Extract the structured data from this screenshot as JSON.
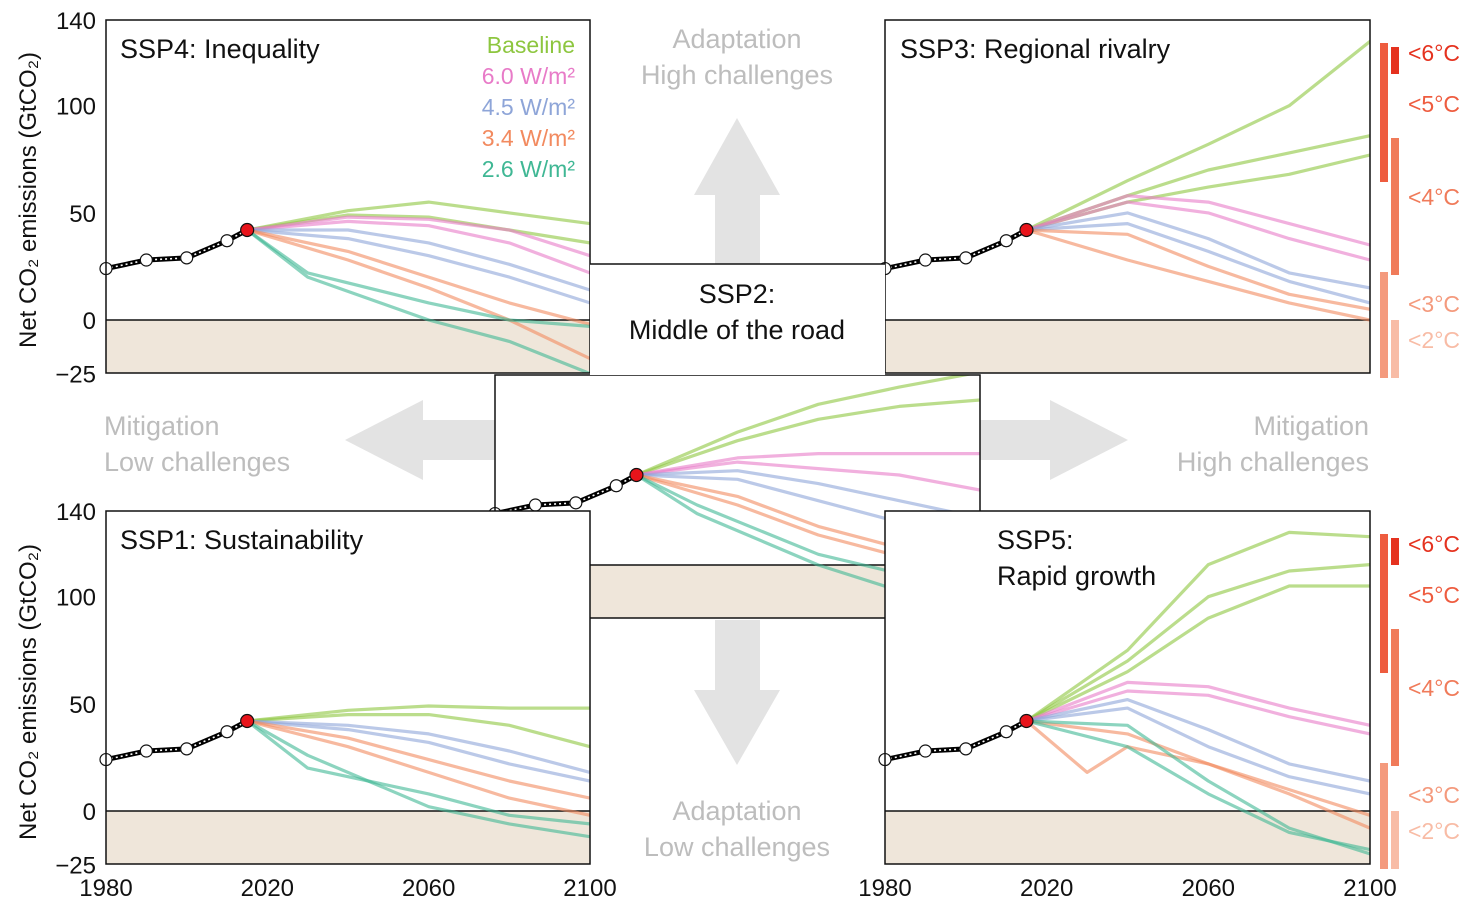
{
  "colors": {
    "baseline": "#8dc63f",
    "w60": "#e87bc8",
    "w45": "#8ea5d8",
    "w34": "#f28a5f",
    "w26": "#3fb794",
    "negative_fill": "#efe6da",
    "arrow": "#e3e3e3",
    "direction_text": "#bdbdbd",
    "history": "#000000",
    "current_point": "#e8141b",
    "temp_6": "#e5321f",
    "temp_5": "#ee5c3f",
    "temp_4": "#f07b5a",
    "temp_3": "#f49a7d",
    "temp_2": "#f8bca6"
  },
  "legend": [
    {
      "label": "Baseline",
      "color_key": "baseline"
    },
    {
      "label": "6.0 W/m²",
      "color_key": "w60"
    },
    {
      "label": "4.5 W/m²",
      "color_key": "w45"
    },
    {
      "label": "3.4 W/m²",
      "color_key": "w34"
    },
    {
      "label": "2.6 W/m²",
      "color_key": "w26"
    }
  ],
  "directions": {
    "up_line1": "Adaptation",
    "up_line2": "High challenges",
    "down_line1": "Adaptation",
    "down_line2": "Low challenges",
    "left_line1": "Mitigation",
    "left_line2": "Low challenges",
    "right_line1": "Mitigation",
    "right_line2": "High challenges"
  },
  "axes": {
    "ylabel": "Net CO₂ emissions (GtCO₂)",
    "yticks": [
      140,
      100,
      50,
      0,
      -25
    ],
    "ytick_labels": [
      "140",
      "100",
      "50",
      "0",
      "−25"
    ],
    "xticks": [
      1980,
      2020,
      2060,
      2100
    ],
    "xtick_labels": [
      "1980",
      "2020",
      "2060",
      "2100"
    ]
  },
  "temperature_scale": {
    "labels": [
      "<6°C",
      "<5°C",
      "<4°C",
      "<3°C",
      "<2°C"
    ],
    "color_keys": [
      "temp_6",
      "temp_5",
      "temp_4",
      "temp_3",
      "temp_2"
    ]
  },
  "chart_data": [
    {
      "type": "line",
      "title": "SSP4: Inequality",
      "xlim": [
        1980,
        2100
      ],
      "ylim": [
        -25,
        140
      ],
      "history": {
        "x": [
          1980,
          1990,
          2000,
          2010,
          2015
        ],
        "y": [
          24,
          28,
          29,
          37,
          42
        ]
      },
      "series": [
        {
          "name": "Baseline",
          "x": [
            2015,
            2040,
            2060,
            2080,
            2100
          ],
          "values": [
            42,
            51,
            55,
            50,
            45
          ]
        },
        {
          "name": "Baseline",
          "x": [
            2015,
            2040,
            2060,
            2080,
            2100
          ],
          "values": [
            42,
            49,
            48,
            42,
            36
          ]
        },
        {
          "name": "6.0 W/m²",
          "x": [
            2015,
            2040,
            2060,
            2080,
            2100
          ],
          "values": [
            42,
            48,
            47,
            42,
            30
          ]
        },
        {
          "name": "6.0 W/m²",
          "x": [
            2015,
            2040,
            2060,
            2080,
            2100
          ],
          "values": [
            42,
            46,
            44,
            36,
            22
          ]
        },
        {
          "name": "4.5 W/m²",
          "x": [
            2015,
            2040,
            2060,
            2080,
            2100
          ],
          "values": [
            42,
            42,
            36,
            26,
            14
          ]
        },
        {
          "name": "4.5 W/m²",
          "x": [
            2015,
            2040,
            2060,
            2080,
            2100
          ],
          "values": [
            42,
            38,
            30,
            20,
            8
          ]
        },
        {
          "name": "3.4 W/m²",
          "x": [
            2015,
            2040,
            2060,
            2080,
            2100
          ],
          "values": [
            42,
            32,
            20,
            8,
            -2
          ]
        },
        {
          "name": "3.4 W/m²",
          "x": [
            2015,
            2040,
            2060,
            2080,
            2100
          ],
          "values": [
            42,
            28,
            15,
            0,
            -18
          ]
        },
        {
          "name": "2.6 W/m²",
          "x": [
            2015,
            2030,
            2060,
            2080,
            2100
          ],
          "values": [
            42,
            22,
            8,
            0,
            -3
          ]
        },
        {
          "name": "2.6 W/m²",
          "x": [
            2015,
            2030,
            2060,
            2080,
            2100
          ],
          "values": [
            42,
            20,
            0,
            -10,
            -25
          ]
        }
      ]
    },
    {
      "type": "line",
      "title": "SSP3: Regional rivalry",
      "xlim": [
        1980,
        2100
      ],
      "ylim": [
        -25,
        140
      ],
      "history": {
        "x": [
          1980,
          1990,
          2000,
          2010,
          2015
        ],
        "y": [
          24,
          28,
          29,
          37,
          42
        ]
      },
      "series": [
        {
          "name": "Baseline",
          "x": [
            2015,
            2040,
            2060,
            2080,
            2100
          ],
          "values": [
            42,
            65,
            82,
            100,
            130
          ]
        },
        {
          "name": "Baseline",
          "x": [
            2015,
            2040,
            2060,
            2080,
            2100
          ],
          "values": [
            42,
            58,
            70,
            78,
            86
          ]
        },
        {
          "name": "Baseline",
          "x": [
            2015,
            2040,
            2060,
            2080,
            2100
          ],
          "values": [
            42,
            55,
            62,
            68,
            77
          ]
        },
        {
          "name": "6.0 W/m²",
          "x": [
            2015,
            2040,
            2060,
            2080,
            2100
          ],
          "values": [
            42,
            58,
            55,
            45,
            35
          ]
        },
        {
          "name": "6.0 W/m²",
          "x": [
            2015,
            2040,
            2060,
            2080,
            2100
          ],
          "values": [
            42,
            55,
            50,
            38,
            28
          ]
        },
        {
          "name": "4.5 W/m²",
          "x": [
            2015,
            2040,
            2060,
            2080,
            2100
          ],
          "values": [
            42,
            50,
            38,
            22,
            15
          ]
        },
        {
          "name": "4.5 W/m²",
          "x": [
            2015,
            2040,
            2060,
            2080,
            2100
          ],
          "values": [
            42,
            45,
            32,
            18,
            8
          ]
        },
        {
          "name": "3.4 W/m²",
          "x": [
            2015,
            2040,
            2060,
            2080,
            2100
          ],
          "values": [
            42,
            40,
            25,
            12,
            5
          ]
        },
        {
          "name": "3.4 W/m²",
          "x": [
            2015,
            2040,
            2060,
            2080,
            2100
          ],
          "values": [
            42,
            28,
            18,
            8,
            0
          ]
        }
      ]
    },
    {
      "type": "line",
      "title": "SSP2: Middle of the road",
      "xlim": [
        1980,
        2100
      ],
      "ylim": [
        -25,
        140
      ],
      "history": {
        "x": [
          1980,
          1990,
          2000,
          2010,
          2015
        ],
        "y": [
          24,
          28,
          29,
          37,
          42
        ]
      },
      "series": [
        {
          "name": "Baseline",
          "x": [
            2015,
            2040,
            2060,
            2080,
            2100
          ],
          "values": [
            42,
            62,
            75,
            83,
            90
          ]
        },
        {
          "name": "Baseline",
          "x": [
            2015,
            2040,
            2060,
            2080,
            2100
          ],
          "values": [
            42,
            58,
            68,
            74,
            77
          ]
        },
        {
          "name": "6.0 W/m²",
          "x": [
            2015,
            2040,
            2060,
            2080,
            2100
          ],
          "values": [
            42,
            50,
            52,
            52,
            52
          ]
        },
        {
          "name": "6.0 W/m²",
          "x": [
            2015,
            2040,
            2060,
            2080,
            2100
          ],
          "values": [
            42,
            48,
            45,
            42,
            35
          ]
        },
        {
          "name": "4.5 W/m²",
          "x": [
            2015,
            2040,
            2060,
            2080,
            2100
          ],
          "values": [
            42,
            44,
            38,
            30,
            22
          ]
        },
        {
          "name": "4.5 W/m²",
          "x": [
            2015,
            2040,
            2060,
            2080,
            2100
          ],
          "values": [
            42,
            40,
            30,
            20,
            12
          ]
        },
        {
          "name": "3.4 W/m²",
          "x": [
            2015,
            2040,
            2060,
            2080,
            2100
          ],
          "values": [
            42,
            32,
            18,
            8,
            2
          ]
        },
        {
          "name": "3.4 W/m²",
          "x": [
            2015,
            2040,
            2060,
            2080,
            2100
          ],
          "values": [
            42,
            28,
            14,
            4,
            -6
          ]
        },
        {
          "name": "2.6 W/m²",
          "x": [
            2015,
            2030,
            2060,
            2080,
            2100
          ],
          "values": [
            42,
            28,
            5,
            -4,
            -10
          ]
        },
        {
          "name": "2.6 W/m²",
          "x": [
            2015,
            2030,
            2060,
            2080,
            2100
          ],
          "values": [
            42,
            24,
            0,
            -12,
            -18
          ]
        }
      ]
    },
    {
      "type": "line",
      "title": "SSP1: Sustainability",
      "xlim": [
        1980,
        2100
      ],
      "ylim": [
        -25,
        140
      ],
      "history": {
        "x": [
          1980,
          1990,
          2000,
          2010,
          2015
        ],
        "y": [
          24,
          28,
          29,
          37,
          42
        ]
      },
      "series": [
        {
          "name": "Baseline",
          "x": [
            2015,
            2040,
            2060,
            2080,
            2100
          ],
          "values": [
            42,
            47,
            49,
            48,
            48
          ]
        },
        {
          "name": "Baseline",
          "x": [
            2015,
            2040,
            2060,
            2080,
            2100
          ],
          "values": [
            42,
            45,
            45,
            40,
            30
          ]
        },
        {
          "name": "4.5 W/m²",
          "x": [
            2015,
            2040,
            2060,
            2080,
            2100
          ],
          "values": [
            42,
            40,
            36,
            28,
            18
          ]
        },
        {
          "name": "4.5 W/m²",
          "x": [
            2015,
            2040,
            2060,
            2080,
            2100
          ],
          "values": [
            42,
            38,
            32,
            22,
            14
          ]
        },
        {
          "name": "3.4 W/m²",
          "x": [
            2015,
            2040,
            2060,
            2080,
            2100
          ],
          "values": [
            42,
            34,
            24,
            14,
            6
          ]
        },
        {
          "name": "3.4 W/m²",
          "x": [
            2015,
            2040,
            2060,
            2080,
            2100
          ],
          "values": [
            42,
            30,
            18,
            6,
            -2
          ]
        },
        {
          "name": "2.6 W/m²",
          "x": [
            2015,
            2030,
            2060,
            2080,
            2100
          ],
          "values": [
            42,
            20,
            8,
            -2,
            -6
          ]
        },
        {
          "name": "2.6 W/m²",
          "x": [
            2015,
            2030,
            2060,
            2080,
            2100
          ],
          "values": [
            42,
            26,
            2,
            -6,
            -12
          ]
        }
      ]
    },
    {
      "type": "line",
      "title": "SSP5: Rapid growth",
      "xlim": [
        1980,
        2100
      ],
      "ylim": [
        -25,
        140
      ],
      "history": {
        "x": [
          1980,
          1990,
          2000,
          2010,
          2015
        ],
        "y": [
          24,
          28,
          29,
          37,
          42
        ]
      },
      "series": [
        {
          "name": "Baseline",
          "x": [
            2015,
            2040,
            2060,
            2080,
            2100
          ],
          "values": [
            42,
            75,
            115,
            130,
            128
          ]
        },
        {
          "name": "Baseline",
          "x": [
            2015,
            2040,
            2060,
            2080,
            2100
          ],
          "values": [
            42,
            70,
            100,
            112,
            115
          ]
        },
        {
          "name": "Baseline",
          "x": [
            2015,
            2040,
            2060,
            2080,
            2100
          ],
          "values": [
            42,
            65,
            90,
            105,
            105
          ]
        },
        {
          "name": "6.0 W/m²",
          "x": [
            2015,
            2040,
            2060,
            2080,
            2100
          ],
          "values": [
            42,
            60,
            58,
            48,
            40
          ]
        },
        {
          "name": "6.0 W/m²",
          "x": [
            2015,
            2040,
            2060,
            2080,
            2100
          ],
          "values": [
            42,
            56,
            54,
            44,
            36
          ]
        },
        {
          "name": "4.5 W/m²",
          "x": [
            2015,
            2040,
            2060,
            2080,
            2100
          ],
          "values": [
            42,
            52,
            38,
            22,
            14
          ]
        },
        {
          "name": "4.5 W/m²",
          "x": [
            2015,
            2040,
            2060,
            2080,
            2100
          ],
          "values": [
            42,
            48,
            30,
            16,
            8
          ]
        },
        {
          "name": "3.4 W/m²",
          "x": [
            2015,
            2030,
            2040,
            2060,
            2080,
            2100
          ],
          "values": [
            42,
            18,
            30,
            22,
            10,
            -2
          ]
        },
        {
          "name": "3.4 W/m²",
          "x": [
            2015,
            2040,
            2060,
            2080,
            2100
          ],
          "values": [
            42,
            36,
            22,
            8,
            -8
          ]
        },
        {
          "name": "2.6 W/m²",
          "x": [
            2015,
            2040,
            2060,
            2080,
            2100
          ],
          "values": [
            42,
            40,
            14,
            -8,
            -20
          ]
        },
        {
          "name": "2.6 W/m²",
          "x": [
            2015,
            2040,
            2060,
            2080,
            2100
          ],
          "values": [
            42,
            30,
            8,
            -10,
            -18
          ]
        }
      ]
    }
  ]
}
